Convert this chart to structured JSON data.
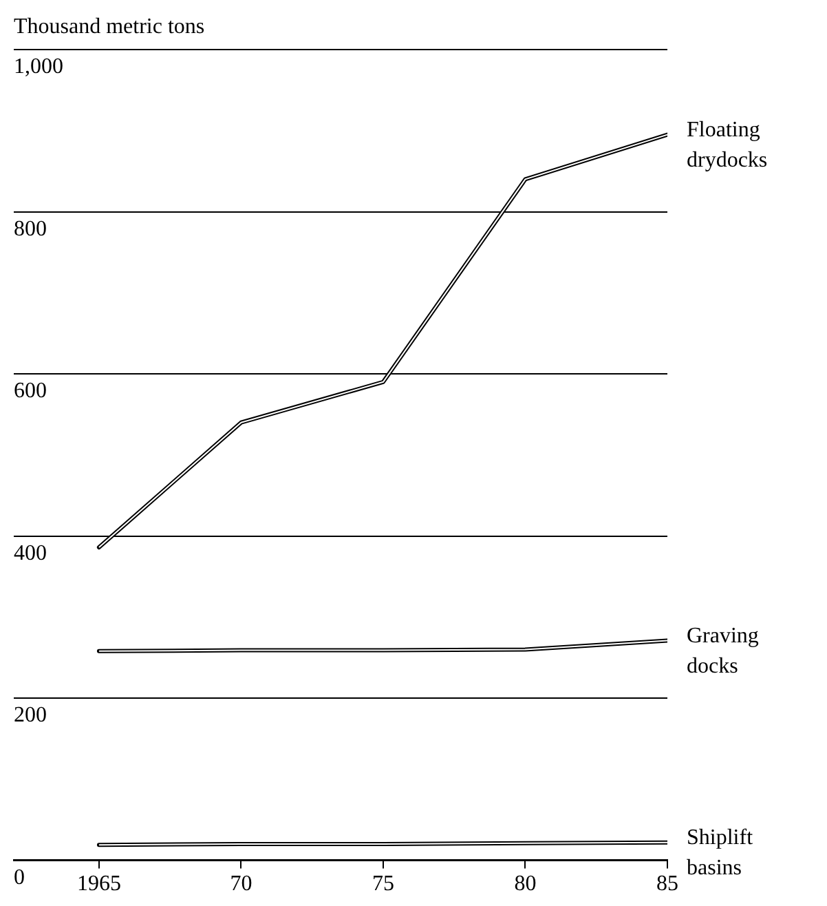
{
  "chart_data": {
    "type": "line",
    "ylabel": "Thousand metric tons",
    "x": [
      1965,
      1970,
      1975,
      1980,
      1985
    ],
    "series": [
      {
        "name": "Floating drydocks",
        "color": "#000000",
        "values": [
          386,
          540,
          590,
          840,
          895
        ]
      },
      {
        "name": "Graving docks",
        "color": "#000000",
        "values": [
          258,
          259,
          259,
          260,
          271
        ]
      },
      {
        "name": "Shiplift basins",
        "color": "#000000",
        "values": [
          19,
          20,
          20,
          21,
          22
        ]
      }
    ],
    "xlim": [
      1962,
      1985
    ],
    "xticks": [
      {
        "value": 1965,
        "label": "1965"
      },
      {
        "value": 1970,
        "label": "70"
      },
      {
        "value": 1975,
        "label": "75"
      },
      {
        "value": 1980,
        "label": "80"
      },
      {
        "value": 1985,
        "label": "85"
      }
    ],
    "ylim": [
      0,
      1000
    ],
    "yticks": [
      0,
      200,
      400,
      600,
      800,
      {
        "value": 1000,
        "label": "1,000"
      }
    ],
    "grid": "y",
    "marker": "none",
    "line_style": "solid"
  }
}
